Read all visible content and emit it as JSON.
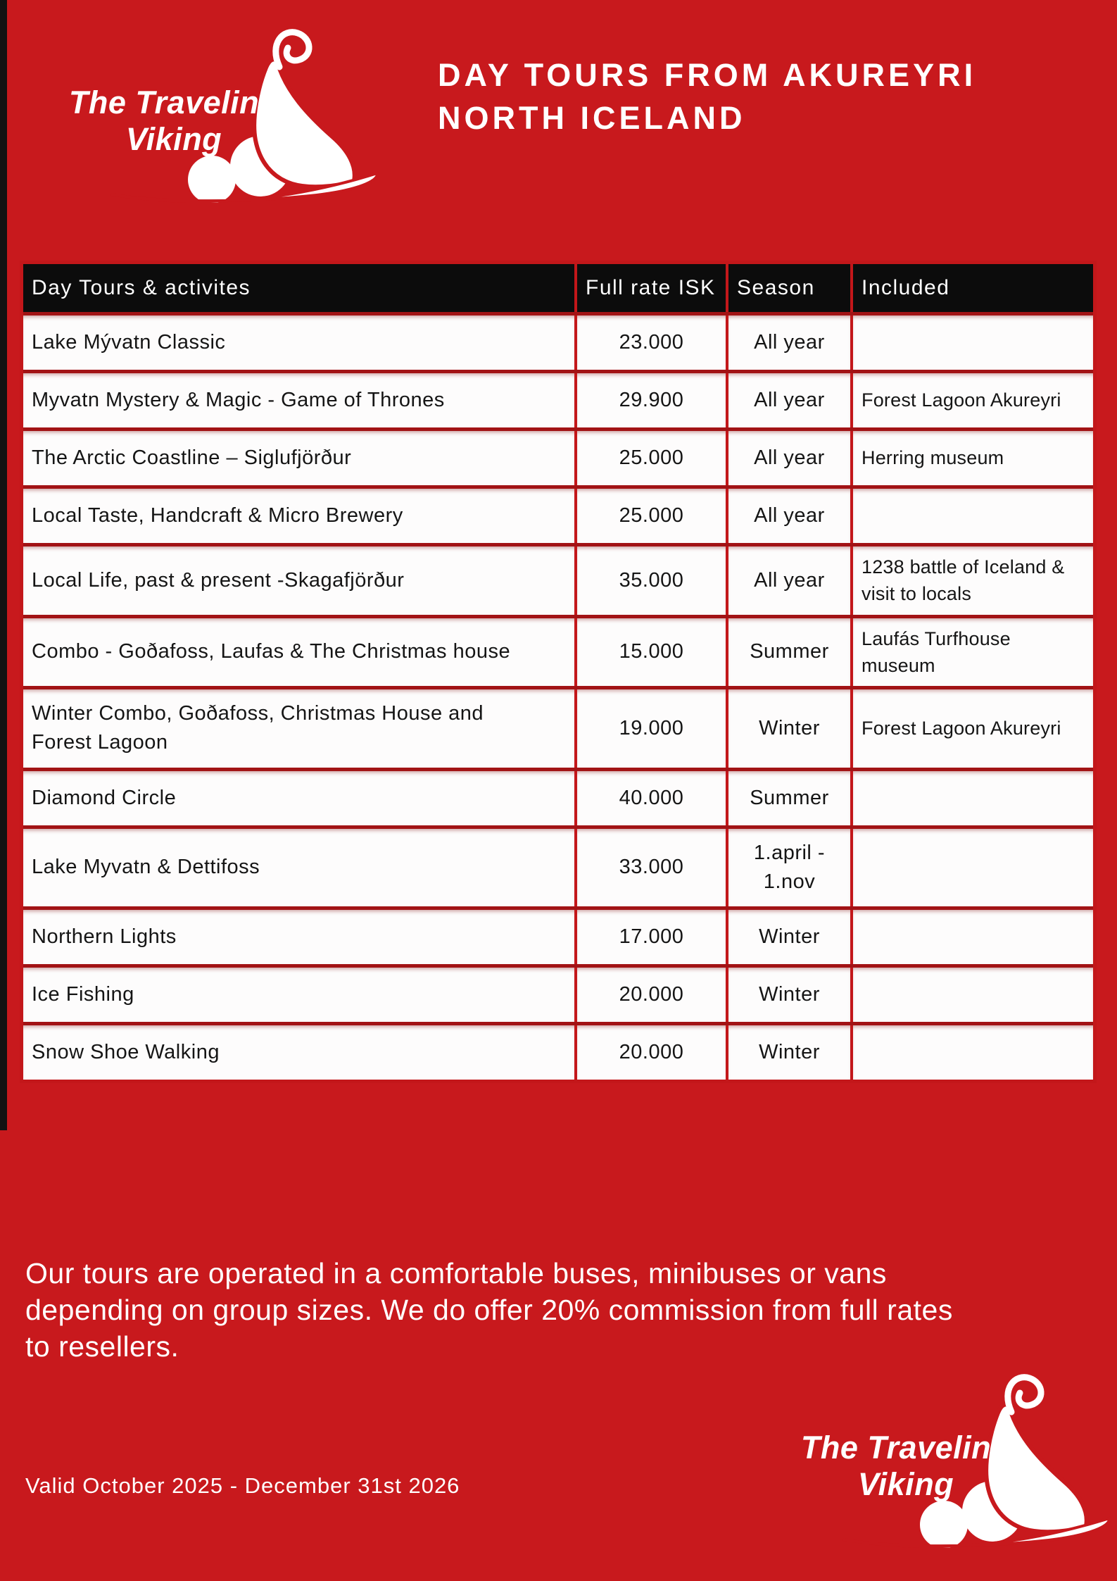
{
  "colors": {
    "background_red": "#c8191d",
    "table_border_red": "#c3171a",
    "row_separator_red": "#a21315",
    "header_black": "#0c0c0c",
    "cell_white": "#fdfcfc",
    "text_white": "#ffffff",
    "text_black": "#151515"
  },
  "logo": {
    "line1": "The Traveling",
    "line2": "Viking",
    "ship_icon": "viking-ship-icon"
  },
  "title": {
    "line1": "DAY TOURS FROM AKUREYRI",
    "line2": "NORTH ICELAND"
  },
  "table": {
    "headers": [
      "Day Tours & activites",
      "Full rate ISK",
      "Season",
      "Included"
    ],
    "rows": [
      {
        "name": "Lake Mývatn Classic",
        "rate": "23.000",
        "season": "All year",
        "included": ""
      },
      {
        "name": "Myvatn Mystery & Magic - Game of Thrones",
        "rate": "29.900",
        "season": "All year",
        "included": "Forest Lagoon Akureyri"
      },
      {
        "name": "The Arctic Coastline – Siglufjörður",
        "rate": "25.000",
        "season": "All year",
        "included": "Herring museum"
      },
      {
        "name": "Local Taste, Handcraft & Micro Brewery",
        "rate": "25.000",
        "season": "All year",
        "included": ""
      },
      {
        "name": "Local Life, past & present -Skagafjörður",
        "rate": "35.000",
        "season": "All year",
        "included": "1238 battle of Iceland & visit to locals"
      },
      {
        "name": "Combo - Goðafoss, Laufas & The Christmas house",
        "rate": "15.000",
        "season": "Summer",
        "included": "Laufás Turfhouse museum"
      },
      {
        "name": "Winter Combo, Goðafoss, Christmas House and Forest Lagoon",
        "rate": "19.000",
        "season": "Winter",
        "included": "Forest Lagoon Akureyri"
      },
      {
        "name": "Diamond Circle",
        "rate": "40.000",
        "season": "Summer",
        "included": ""
      },
      {
        "name": "Lake Myvatn & Dettifoss",
        "rate": "33.000",
        "season": "1.april - 1.nov",
        "included": ""
      },
      {
        "name": "Northern Lights",
        "rate": "17.000",
        "season": "Winter",
        "included": ""
      },
      {
        "name": "Ice Fishing",
        "rate": "20.000",
        "season": "Winter",
        "included": ""
      },
      {
        "name": "Snow Shoe Walking",
        "rate": "20.000",
        "season": "Winter",
        "included": ""
      }
    ]
  },
  "footer": {
    "lines": [
      "Our tours are operated in a comfortable buses, minibuses or vans",
      "depending on group sizes. We do offer 20% commission from full rates",
      "to resellers."
    ],
    "valid": "Valid October 2025 - December 31st 2026"
  }
}
